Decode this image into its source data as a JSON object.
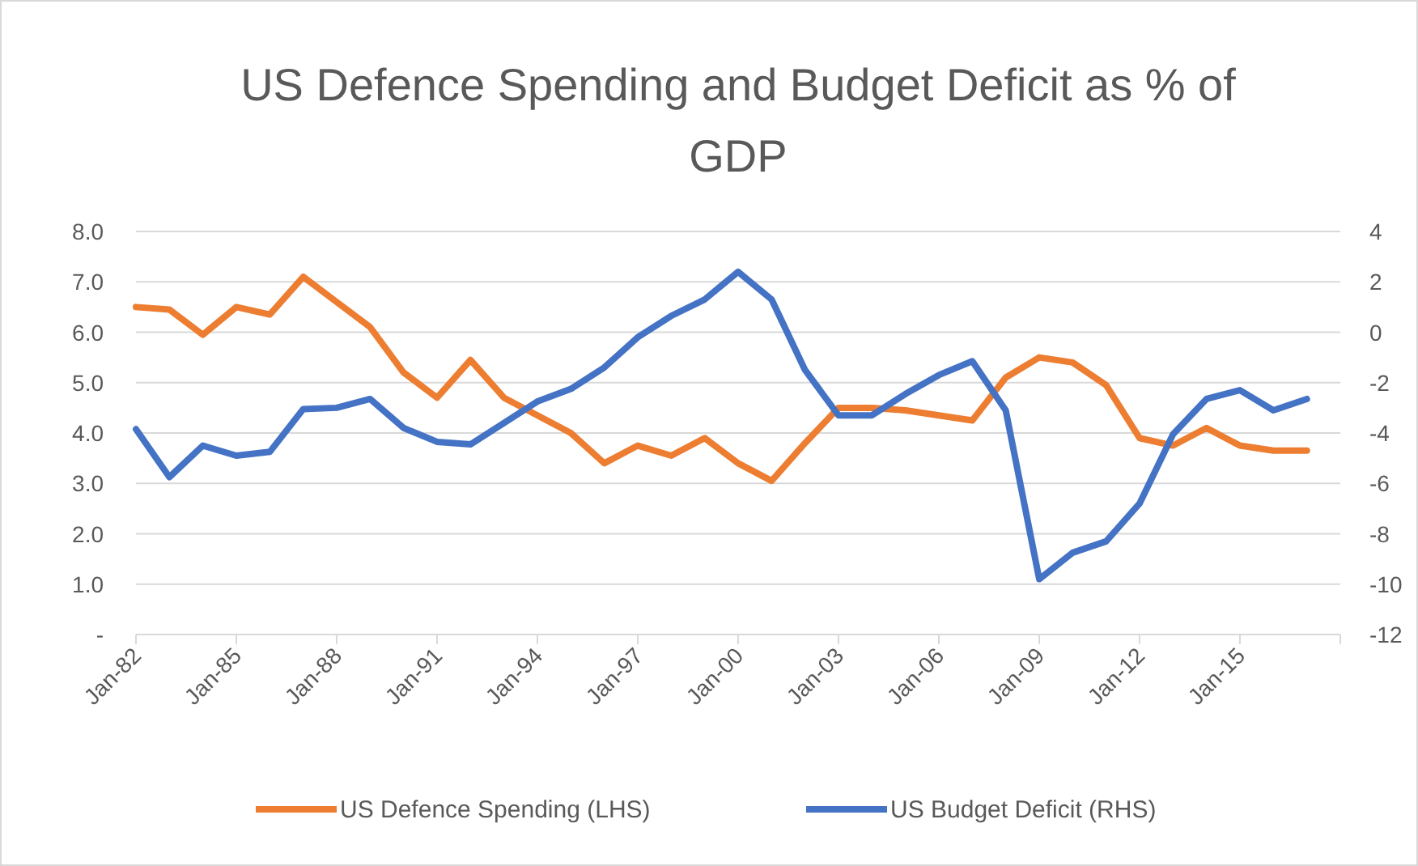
{
  "chart_data": {
    "type": "line",
    "title": "US Defence Spending and Budget Deficit as % of GDP",
    "x": [
      "1982-01",
      "1983-01",
      "1984-01",
      "1985-01",
      "1986-01",
      "1987-01",
      "1988-01",
      "1989-01",
      "1990-01",
      "1991-01",
      "1992-01",
      "1993-01",
      "1994-01",
      "1995-01",
      "1996-01",
      "1997-01",
      "1998-01",
      "1999-01",
      "2000-01",
      "2001-01",
      "2002-01",
      "2003-01",
      "2004-01",
      "2005-01",
      "2006-01",
      "2007-01",
      "2008-01",
      "2009-01",
      "2010-01",
      "2011-01",
      "2012-01",
      "2013-01",
      "2014-01",
      "2015-01",
      "2016-01",
      "2017-01"
    ],
    "series": [
      {
        "name": "US Defence Spending (LHS)",
        "color": "#ed7d31",
        "values": [
          6.5,
          6.45,
          5.95,
          6.5,
          6.35,
          7.1,
          6.6,
          6.1,
          5.2,
          4.7,
          5.45,
          4.7,
          4.35,
          4.0,
          3.4,
          3.75,
          3.55,
          3.9,
          3.4,
          3.05,
          3.8,
          4.5,
          4.5,
          4.45,
          4.35,
          4.25,
          5.1,
          5.5,
          5.4,
          4.95,
          3.9,
          3.75,
          4.1,
          3.75,
          3.65,
          3.65
        ]
      },
      {
        "name": "US Budget Deficit (RHS)",
        "color": "#4472c4",
        "axis": "y2",
        "values": [
          -3.85,
          -5.75,
          -4.5,
          -4.9,
          -4.75,
          -3.05,
          -3.0,
          -2.65,
          -3.8,
          -4.35,
          -4.45,
          -3.6,
          -2.75,
          -2.25,
          -1.4,
          -0.2,
          0.65,
          1.3,
          2.4,
          1.3,
          -1.5,
          -3.3,
          -3.3,
          -2.45,
          -1.7,
          -1.15,
          -3.1,
          -9.8,
          -8.75,
          -8.3,
          -6.8,
          -4.05,
          -2.65,
          -2.3,
          -3.1,
          -2.65
        ]
      }
    ],
    "xlim": [
      "1982-01",
      "2018-01"
    ],
    "xticks": [
      {
        "value": "1982-01",
        "label": "Jan-82"
      },
      {
        "value": "1985-01",
        "label": "Jan-85"
      },
      {
        "value": "1988-01",
        "label": "Jan-88"
      },
      {
        "value": "1991-01",
        "label": "Jan-91"
      },
      {
        "value": "1994-01",
        "label": "Jan-94"
      },
      {
        "value": "1997-01",
        "label": "Jan-97"
      },
      {
        "value": "2000-01",
        "label": "Jan-00"
      },
      {
        "value": "2003-01",
        "label": "Jan-03"
      },
      {
        "value": "2006-01",
        "label": "Jan-06"
      },
      {
        "value": "2009-01",
        "label": "Jan-09"
      },
      {
        "value": "2012-01",
        "label": "Jan-12"
      },
      {
        "value": "2015-01",
        "label": "Jan-15"
      },
      {
        "value": "2018-01",
        "label": null
      }
    ],
    "ylim": [
      0,
      8
    ],
    "yticks": [
      {
        "value": 0,
        "label": "-"
      },
      {
        "value": 1,
        "label": "1.0"
      },
      {
        "value": 2,
        "label": "2.0"
      },
      {
        "value": 3,
        "label": "3.0"
      },
      {
        "value": 4,
        "label": "4.0"
      },
      {
        "value": 5,
        "label": "5.0"
      },
      {
        "value": 6,
        "label": "6.0"
      },
      {
        "value": 7,
        "label": "7.0"
      },
      {
        "value": 8,
        "label": "8.0"
      }
    ],
    "y2lim": [
      -12,
      4
    ],
    "y2ticks": [
      -12,
      -10,
      -8,
      -6,
      -4,
      -2,
      0,
      2,
      4
    ],
    "grid": "y",
    "legend": "bottom",
    "marker": "none",
    "line_style": "solid"
  }
}
